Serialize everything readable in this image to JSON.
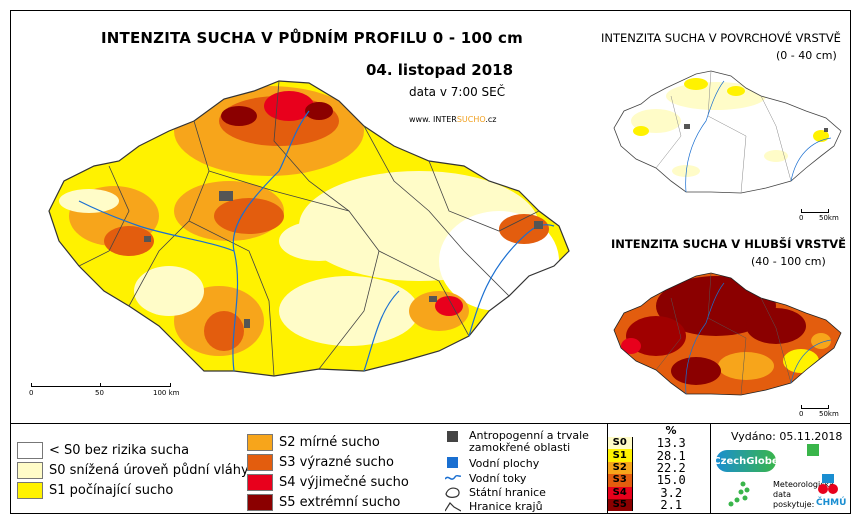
{
  "main_map": {
    "title": "INTENZITA SUCHA V PŮDNÍM PROFILU 0 - 100 cm",
    "date": "04. listopad 2018",
    "data_time": "data v 7:00 SEČ",
    "website_prefix": "www. INTER",
    "website_highlight": "SUCHO",
    "website_suffix": ".cz",
    "scale_labels": [
      "0",
      "50",
      "100 km"
    ]
  },
  "surface_map": {
    "title": "INTENZITA SUCHA V POVRCHOVÉ VRSTVĚ",
    "depth": "(0 - 40 cm)",
    "scale_labels": [
      "0",
      "50km"
    ]
  },
  "deep_map": {
    "title": "INTENZITA SUCHA V HLUBŠÍ VRSTVĚ",
    "depth": "(40 - 100 cm)",
    "scale_labels": [
      "0",
      "50km"
    ]
  },
  "legend": {
    "classes": [
      {
        "label": "< S0 bez rizika sucha",
        "color": "#ffffff"
      },
      {
        "label": "S0 snížená úroveň půdní vláhy",
        "color": "#fffcc8"
      },
      {
        "label": "S1 počínající sucho",
        "color": "#fff200"
      },
      {
        "label": "S2 mírné sucho",
        "color": "#f7a51b"
      },
      {
        "label": "S3 výrazné sucho",
        "color": "#e35d0e"
      },
      {
        "label": "S4 výjimečné sucho",
        "color": "#e8001c"
      },
      {
        "label": "S5 extrémní sucho",
        "color": "#8b0000"
      }
    ],
    "other": [
      {
        "label": "Antropogenní a trvale zamokřené oblasti",
        "icon": "dark-square-icon"
      },
      {
        "label": "Vodní plochy",
        "icon": "blue-square-icon"
      },
      {
        "label": "Vodní toky",
        "icon": "river-line-icon"
      },
      {
        "label": "Státní hranice",
        "icon": "state-border-icon"
      },
      {
        "label": "Hranice krajů",
        "icon": "region-border-icon"
      }
    ]
  },
  "stats": {
    "header": "%",
    "rows": [
      {
        "cls": "S0",
        "value": "13.3",
        "color": "#fffcc8"
      },
      {
        "cls": "S1",
        "value": "28.1",
        "color": "#fff200"
      },
      {
        "cls": "S2",
        "value": "22.2",
        "color": "#f7a51b"
      },
      {
        "cls": "S3",
        "value": "15.0",
        "color": "#e35d0e"
      },
      {
        "cls": "S4",
        "value": "3.2",
        "color": "#e8001c"
      },
      {
        "cls": "S5",
        "value": "2.1",
        "color": "#8b0000"
      }
    ]
  },
  "issued": "Vydáno: 05.11.2018",
  "providers": {
    "label": "Meteorologická\ndata\nposkytuje:",
    "logos": [
      "CzechGlobe",
      "ČHMÚ"
    ]
  }
}
